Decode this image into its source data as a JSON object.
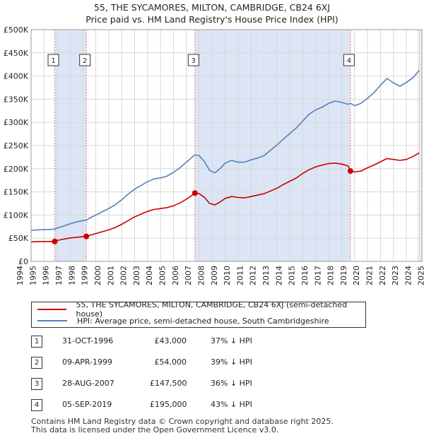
{
  "colors": {
    "price_paid": "#cc0000",
    "hpi": "#5580b8",
    "sale_band": "#dce5f5",
    "vline": "#e07a7a",
    "grid": "#d8d8d8"
  },
  "header": {
    "title": "55, THE SYCAMORES, MILTON, CAMBRIDGE, CB24 6XJ",
    "subtitle": "Price paid vs. HM Land Registry's House Price Index (HPI)"
  },
  "chart_data": {
    "type": "line",
    "title": "55, THE SYCAMORES, MILTON, CAMBRIDGE, CB24 6XJ",
    "subtitle": "Price paid vs. HM Land Registry's House Price Index (HPI)",
    "xlabel": "",
    "ylabel": "",
    "xlim": [
      1995.0,
      2025.2
    ],
    "ylim": [
      0,
      500000
    ],
    "x_ticks": [
      "1994",
      "1995",
      "1996",
      "1997",
      "1998",
      "1999",
      "2000",
      "2001",
      "2002",
      "2003",
      "2004",
      "2005",
      "2006",
      "2007",
      "2008",
      "2009",
      "2010",
      "2011",
      "2012",
      "2013",
      "2014",
      "2015",
      "2016",
      "2017",
      "2018",
      "2019",
      "2020",
      "2021",
      "2022",
      "2023",
      "2024",
      "2025"
    ],
    "y_ticks": [
      {
        "value": 0,
        "label": "£0"
      },
      {
        "value": 50000,
        "label": "£50K"
      },
      {
        "value": 100000,
        "label": "£100K"
      },
      {
        "value": 150000,
        "label": "£150K"
      },
      {
        "value": 200000,
        "label": "£200K"
      },
      {
        "value": 250000,
        "label": "£250K"
      },
      {
        "value": 300000,
        "label": "£300K"
      },
      {
        "value": 350000,
        "label": "£350K"
      },
      {
        "value": 400000,
        "label": "£400K"
      },
      {
        "value": 450000,
        "label": "£450K"
      },
      {
        "value": 500000,
        "label": "£500K"
      }
    ],
    "grid": true,
    "legend_position": "below",
    "series": [
      {
        "name": "55, THE SYCAMORES, MILTON, CAMBRIDGE, CB24 6XJ (semi-detached house)",
        "color": "#cc0000",
        "points": [
          [
            1995.0,
            42000
          ],
          [
            1995.5,
            42500
          ],
          [
            1996.0,
            42800
          ],
          [
            1996.5,
            43000
          ],
          [
            1996.83,
            43000
          ],
          [
            1997.0,
            45000
          ],
          [
            1997.5,
            48000
          ],
          [
            1998.0,
            50500
          ],
          [
            1998.5,
            52000
          ],
          [
            1999.0,
            53500
          ],
          [
            1999.27,
            54000
          ],
          [
            1999.5,
            56000
          ],
          [
            2000.0,
            60000
          ],
          [
            2000.5,
            64000
          ],
          [
            2001.0,
            68000
          ],
          [
            2001.5,
            73000
          ],
          [
            2002.0,
            80000
          ],
          [
            2002.5,
            88000
          ],
          [
            2003.0,
            96000
          ],
          [
            2003.5,
            102000
          ],
          [
            2004.0,
            108000
          ],
          [
            2004.5,
            112000
          ],
          [
            2005.0,
            114000
          ],
          [
            2005.5,
            116000
          ],
          [
            2006.0,
            120000
          ],
          [
            2006.5,
            126000
          ],
          [
            2007.0,
            134000
          ],
          [
            2007.5,
            144000
          ],
          [
            2007.66,
            147500
          ],
          [
            2008.0,
            146000
          ],
          [
            2008.4,
            138000
          ],
          [
            2008.8,
            125000
          ],
          [
            2009.2,
            122000
          ],
          [
            2009.6,
            128000
          ],
          [
            2010.0,
            136000
          ],
          [
            2010.5,
            140000
          ],
          [
            2011.0,
            138000
          ],
          [
            2011.5,
            137000
          ],
          [
            2012.0,
            140000
          ],
          [
            2012.5,
            143000
          ],
          [
            2013.0,
            146000
          ],
          [
            2013.5,
            152000
          ],
          [
            2014.0,
            158000
          ],
          [
            2014.5,
            166000
          ],
          [
            2015.0,
            173000
          ],
          [
            2015.5,
            180000
          ],
          [
            2016.0,
            190000
          ],
          [
            2016.5,
            198000
          ],
          [
            2017.0,
            204000
          ],
          [
            2017.5,
            208000
          ],
          [
            2018.0,
            211000
          ],
          [
            2018.5,
            212000
          ],
          [
            2019.0,
            210000
          ],
          [
            2019.5,
            206000
          ],
          [
            2019.68,
            195000
          ],
          [
            2020.0,
            193000
          ],
          [
            2020.5,
            195000
          ],
          [
            2021.0,
            202000
          ],
          [
            2021.5,
            208000
          ],
          [
            2022.0,
            215000
          ],
          [
            2022.5,
            222000
          ],
          [
            2023.0,
            220000
          ],
          [
            2023.5,
            218000
          ],
          [
            2024.0,
            220000
          ],
          [
            2024.5,
            226000
          ],
          [
            2025.0,
            234000
          ]
        ]
      },
      {
        "name": "HPI: Average price, semi-detached house, South Cambridgeshire",
        "color": "#5580b8",
        "points": [
          [
            1995.0,
            67000
          ],
          [
            1995.5,
            68000
          ],
          [
            1996.0,
            68500
          ],
          [
            1996.5,
            69000
          ],
          [
            1996.83,
            69500
          ],
          [
            1997.0,
            72000
          ],
          [
            1997.5,
            76000
          ],
          [
            1998.0,
            81000
          ],
          [
            1998.5,
            85000
          ],
          [
            1999.0,
            88000
          ],
          [
            1999.27,
            89000
          ],
          [
            1999.5,
            93000
          ],
          [
            2000.0,
            100000
          ],
          [
            2000.5,
            107000
          ],
          [
            2001.0,
            114000
          ],
          [
            2001.5,
            122000
          ],
          [
            2002.0,
            133000
          ],
          [
            2002.5,
            145000
          ],
          [
            2003.0,
            156000
          ],
          [
            2003.5,
            164000
          ],
          [
            2004.0,
            172000
          ],
          [
            2004.5,
            178000
          ],
          [
            2005.0,
            180000
          ],
          [
            2005.5,
            184000
          ],
          [
            2006.0,
            192000
          ],
          [
            2006.5,
            202000
          ],
          [
            2007.0,
            214000
          ],
          [
            2007.5,
            226000
          ],
          [
            2007.66,
            230000
          ],
          [
            2008.0,
            228000
          ],
          [
            2008.4,
            215000
          ],
          [
            2008.8,
            196000
          ],
          [
            2009.2,
            191000
          ],
          [
            2009.6,
            200000
          ],
          [
            2010.0,
            212000
          ],
          [
            2010.5,
            218000
          ],
          [
            2011.0,
            214000
          ],
          [
            2011.5,
            214000
          ],
          [
            2012.0,
            219000
          ],
          [
            2012.5,
            223000
          ],
          [
            2013.0,
            228000
          ],
          [
            2013.5,
            240000
          ],
          [
            2014.0,
            251000
          ],
          [
            2014.5,
            264000
          ],
          [
            2015.0,
            276000
          ],
          [
            2015.5,
            288000
          ],
          [
            2016.0,
            303000
          ],
          [
            2016.5,
            318000
          ],
          [
            2017.0,
            327000
          ],
          [
            2017.5,
            333000
          ],
          [
            2018.0,
            341000
          ],
          [
            2018.5,
            346000
          ],
          [
            2019.0,
            343000
          ],
          [
            2019.5,
            339000
          ],
          [
            2019.68,
            341000
          ],
          [
            2020.0,
            336000
          ],
          [
            2020.5,
            341000
          ],
          [
            2021.0,
            352000
          ],
          [
            2021.5,
            364000
          ],
          [
            2022.0,
            380000
          ],
          [
            2022.5,
            395000
          ],
          [
            2023.0,
            385000
          ],
          [
            2023.5,
            378000
          ],
          [
            2024.0,
            386000
          ],
          [
            2024.5,
            396000
          ],
          [
            2025.0,
            412000
          ]
        ]
      }
    ],
    "sales": [
      {
        "id": "1",
        "x": 1996.83,
        "value": 43000
      },
      {
        "id": "2",
        "x": 1999.27,
        "value": 54000
      },
      {
        "id": "3",
        "x": 2007.66,
        "value": 147500
      },
      {
        "id": "4",
        "x": 2019.68,
        "value": 195000
      }
    ]
  },
  "legend": {
    "items": [
      {
        "label": "55, THE SYCAMORES, MILTON, CAMBRIDGE, CB24 6XJ (semi-detached house)"
      },
      {
        "label": "HPI: Average price, semi-detached house, South Cambridgeshire"
      }
    ]
  },
  "transactions": [
    {
      "num": "1",
      "date": "31-OCT-1996",
      "price": "£43,000",
      "hpi": "37% ↓ HPI"
    },
    {
      "num": "2",
      "date": "09-APR-1999",
      "price": "£54,000",
      "hpi": "39% ↓ HPI"
    },
    {
      "num": "3",
      "date": "28-AUG-2007",
      "price": "£147,500",
      "hpi": "36% ↓ HPI"
    },
    {
      "num": "4",
      "date": "05-SEP-2019",
      "price": "£195,000",
      "hpi": "43% ↓ HPI"
    }
  ],
  "footer": {
    "line1": "Contains HM Land Registry data © Crown copyright and database right 2025.",
    "line2": "This data is licensed under the Open Government Licence v3.0."
  }
}
